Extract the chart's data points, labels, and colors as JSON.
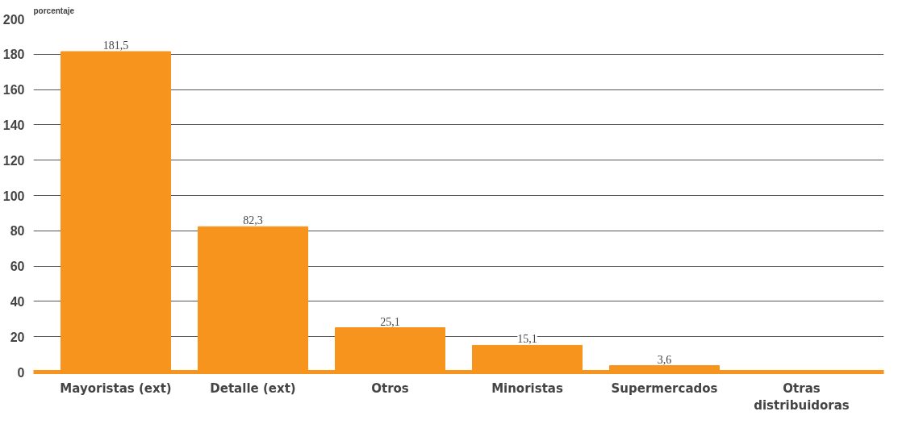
{
  "chart_data": {
    "type": "bar",
    "ylabel": "porcentaje",
    "categories": [
      "Mayoristas (ext)",
      "Detalle (ext)",
      "Otros",
      "Minoristas",
      "Supermercados",
      "Otras distribuidoras"
    ],
    "values": [
      181.5,
      82.3,
      25.1,
      15.1,
      3.6,
      0.5
    ],
    "value_labels": [
      "181,5",
      "82,3",
      "25,1",
      "15,1",
      "3,6",
      null
    ],
    "color": "#f7941d",
    "ylim": [
      0,
      200
    ],
    "yticks": [
      0,
      20,
      40,
      60,
      80,
      100,
      120,
      140,
      160,
      180,
      200
    ],
    "grid": "y"
  }
}
